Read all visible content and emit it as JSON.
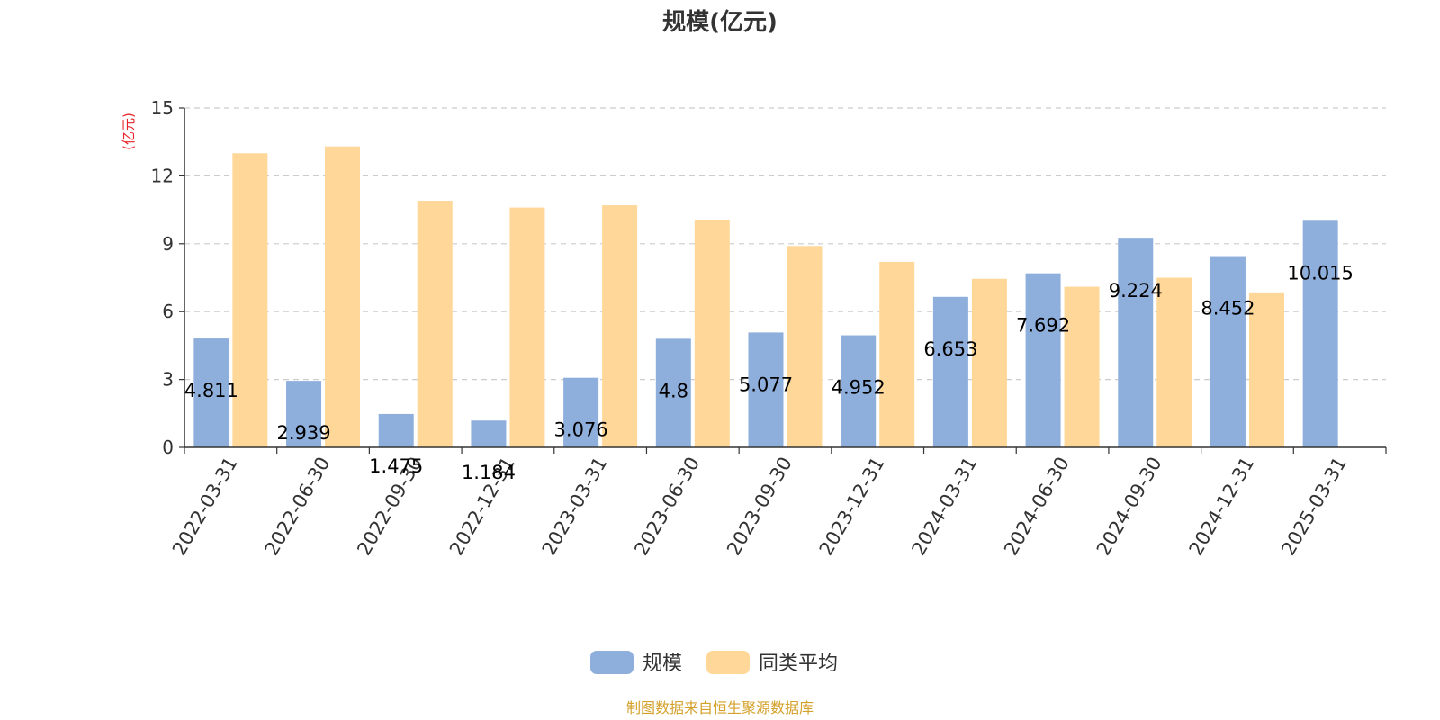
{
  "chart_data": {
    "type": "bar",
    "title": "规模(亿元)",
    "ylabel": "(亿元)",
    "ylim": [
      0,
      15
    ],
    "yticks": [
      "0",
      "3",
      "6",
      "9",
      "12",
      "15"
    ],
    "grid": true,
    "legend_position": "bottom-center",
    "categories": [
      "2022-03-31",
      "2022-06-30",
      "2022-09-30",
      "2022-12-31",
      "2023-03-31",
      "2023-06-30",
      "2023-09-30",
      "2023-12-31",
      "2024-03-31",
      "2024-06-30",
      "2024-09-30",
      "2024-12-31",
      "2025-03-31"
    ],
    "series": [
      {
        "name": "规模",
        "color": "#8eaedc",
        "values": [
          4.811,
          2.939,
          1.475,
          1.184,
          3.076,
          4.8,
          5.077,
          4.952,
          6.653,
          7.692,
          9.224,
          8.452,
          10.015
        ],
        "labels": [
          "4.811",
          "2.939",
          "1.475",
          "1.184",
          "3.076",
          "4.8",
          "5.077",
          "4.952",
          "6.653",
          "7.692",
          "9.224",
          "8.452",
          "10.015"
        ]
      },
      {
        "name": "同类平均",
        "color": "#ffd899",
        "values": [
          13.0,
          13.3,
          10.9,
          10.6,
          10.7,
          10.05,
          8.9,
          8.2,
          7.45,
          7.1,
          7.5,
          6.85,
          null
        ]
      }
    ]
  },
  "unit_color": "#e8242a",
  "grid_color": "#cccccc",
  "source_text": "制图数据来自恒生聚源数据库",
  "source_color": "#d4a12b"
}
